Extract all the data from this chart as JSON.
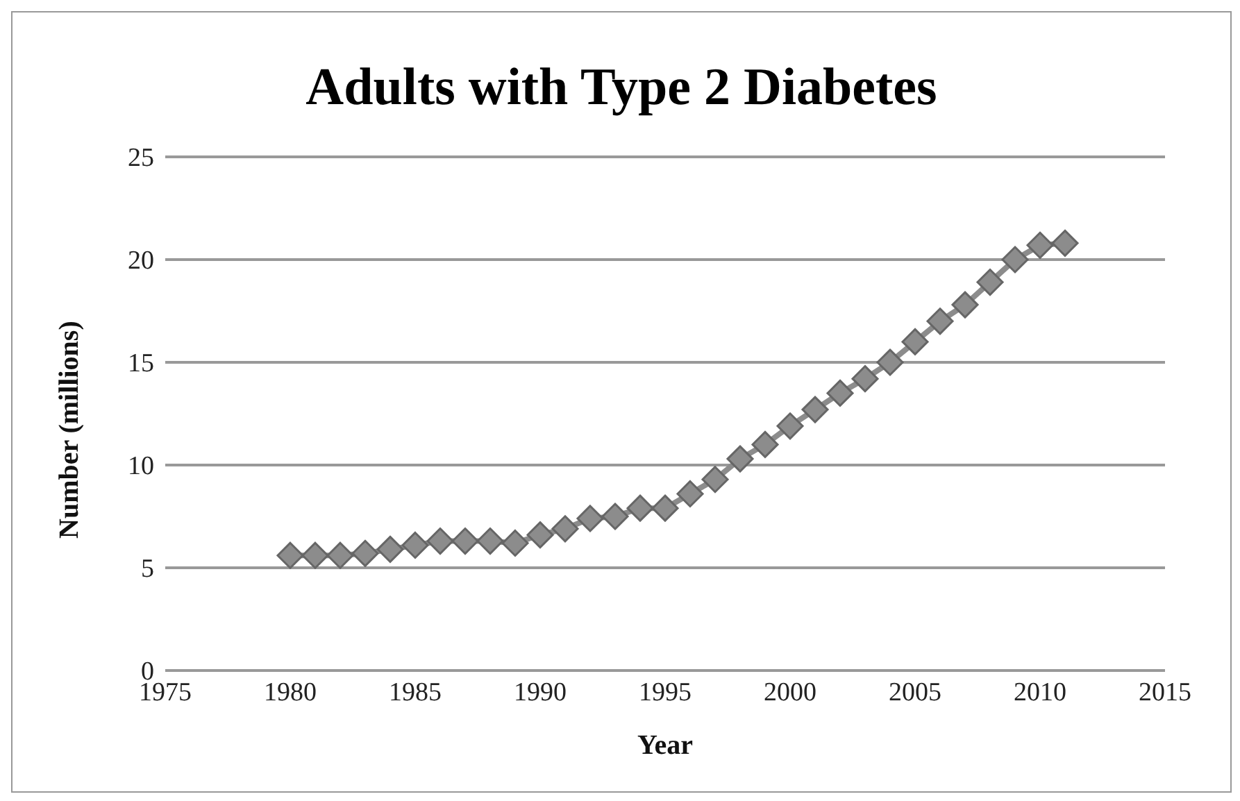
{
  "chart_data": {
    "type": "line",
    "title": "Adults with Type 2 Diabetes",
    "xlabel": "Year",
    "ylabel": "Number (millions)",
    "x": [
      1980,
      1981,
      1982,
      1983,
      1984,
      1985,
      1986,
      1987,
      1988,
      1989,
      1990,
      1991,
      1992,
      1993,
      1994,
      1995,
      1996,
      1997,
      1998,
      1999,
      2000,
      2001,
      2002,
      2003,
      2004,
      2005,
      2006,
      2007,
      2008,
      2009,
      2010,
      2011
    ],
    "series": [
      {
        "color": "#8c8c8c",
        "values": [
          5.6,
          5.6,
          5.6,
          5.7,
          5.9,
          6.1,
          6.3,
          6.3,
          6.3,
          6.2,
          6.6,
          6.9,
          7.4,
          7.5,
          7.9,
          7.9,
          8.6,
          9.3,
          10.3,
          11.0,
          11.9,
          12.7,
          13.5,
          14.2,
          15.0,
          16.0,
          17.0,
          17.8,
          18.9,
          20.0,
          20.7,
          20.8
        ]
      }
    ],
    "xlim": [
      1975,
      2015
    ],
    "xticks": [
      1975,
      1980,
      1985,
      1990,
      1995,
      2000,
      2005,
      2010,
      2015
    ],
    "ylim": [
      0,
      25
    ],
    "yticks": [
      0,
      5,
      10,
      15,
      20,
      25
    ],
    "grid": "y",
    "marker": "diamond",
    "legend": false
  }
}
